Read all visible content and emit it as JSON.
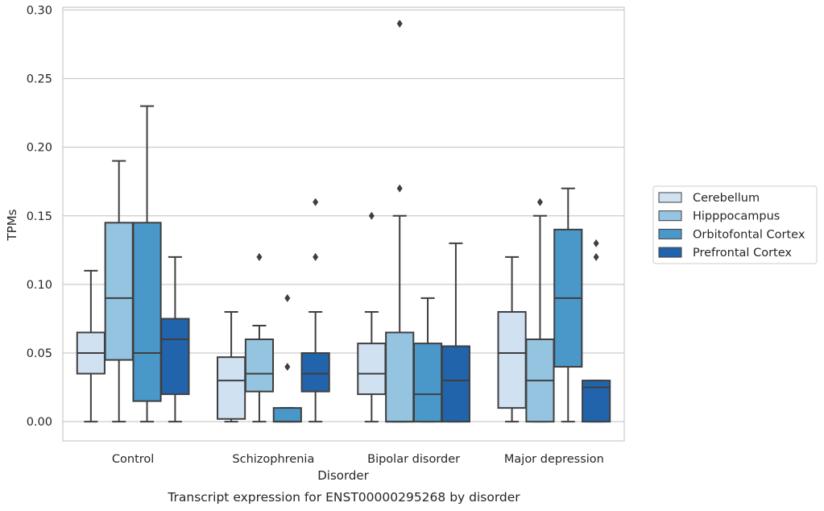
{
  "chart_data": {
    "type": "box",
    "xlabel": "Disorder",
    "ylabel": "TPMs",
    "caption": "Transcript expression for ENST00000295268 by disorder",
    "ylim": [
      -0.014,
      0.302
    ],
    "yticks": [
      0.0,
      0.05,
      0.1,
      0.15,
      0.2,
      0.25,
      0.3
    ],
    "ytick_labels": [
      "0.00",
      "0.05",
      "0.10",
      "0.15",
      "0.20",
      "0.25",
      "0.30"
    ],
    "grid": "horizontal",
    "legend_position": "right",
    "categories": [
      "Control",
      "Schizophrenia",
      "Bipolar disorder",
      "Major depression"
    ],
    "series": [
      {
        "name": "Cerebellum",
        "color": "#d0e1f2",
        "boxes": [
          {
            "whislo": 0.0,
            "q1": 0.035,
            "med": 0.05,
            "q3": 0.065,
            "whishi": 0.11,
            "fliers": []
          },
          {
            "whislo": 0.0,
            "q1": 0.002,
            "med": 0.03,
            "q3": 0.047,
            "whishi": 0.08,
            "fliers": []
          },
          {
            "whislo": 0.0,
            "q1": 0.02,
            "med": 0.035,
            "q3": 0.057,
            "whishi": 0.08,
            "fliers": [
              0.15
            ]
          },
          {
            "whislo": 0.0,
            "q1": 0.01,
            "med": 0.05,
            "q3": 0.08,
            "whishi": 0.12,
            "fliers": []
          }
        ]
      },
      {
        "name": "Hipppocampus",
        "color": "#94c4df",
        "boxes": [
          {
            "whislo": 0.0,
            "q1": 0.045,
            "med": 0.09,
            "q3": 0.145,
            "whishi": 0.19,
            "fliers": []
          },
          {
            "whislo": 0.0,
            "q1": 0.022,
            "med": 0.035,
            "q3": 0.06,
            "whishi": 0.07,
            "fliers": [
              0.12
            ]
          },
          {
            "whislo": 0.0,
            "q1": 0.0,
            "med": 0.0,
            "q3": 0.065,
            "whishi": 0.15,
            "fliers": [
              0.17,
              0.29
            ]
          },
          {
            "whislo": 0.0,
            "q1": 0.0,
            "med": 0.03,
            "q3": 0.06,
            "whishi": 0.15,
            "fliers": [
              0.16
            ]
          }
        ]
      },
      {
        "name": "Orbitofontal Cortex",
        "color": "#4a98c9",
        "boxes": [
          {
            "whislo": 0.0,
            "q1": 0.015,
            "med": 0.05,
            "q3": 0.145,
            "whishi": 0.23,
            "fliers": []
          },
          {
            "whislo": 0.0,
            "q1": 0.0,
            "med": 0.0,
            "q3": 0.01,
            "whishi": 0.01,
            "fliers": [
              0.04,
              0.09
            ]
          },
          {
            "whislo": 0.0,
            "q1": 0.0,
            "med": 0.02,
            "q3": 0.057,
            "whishi": 0.09,
            "fliers": []
          },
          {
            "whislo": 0.0,
            "q1": 0.04,
            "med": 0.09,
            "q3": 0.14,
            "whishi": 0.17,
            "fliers": []
          }
        ]
      },
      {
        "name": "Prefrontal Cortex",
        "color": "#2164ab",
        "boxes": [
          {
            "whislo": 0.0,
            "q1": 0.02,
            "med": 0.06,
            "q3": 0.075,
            "whishi": 0.12,
            "fliers": []
          },
          {
            "whislo": 0.0,
            "q1": 0.022,
            "med": 0.035,
            "q3": 0.05,
            "whishi": 0.08,
            "fliers": [
              0.12,
              0.16
            ]
          },
          {
            "whislo": 0.0,
            "q1": 0.0,
            "med": 0.03,
            "q3": 0.055,
            "whishi": 0.13,
            "fliers": []
          },
          {
            "whislo": 0.0,
            "q1": 0.0,
            "med": 0.025,
            "q3": 0.03,
            "whishi": 0.03,
            "fliers": [
              0.12,
              0.13
            ]
          }
        ]
      }
    ]
  }
}
